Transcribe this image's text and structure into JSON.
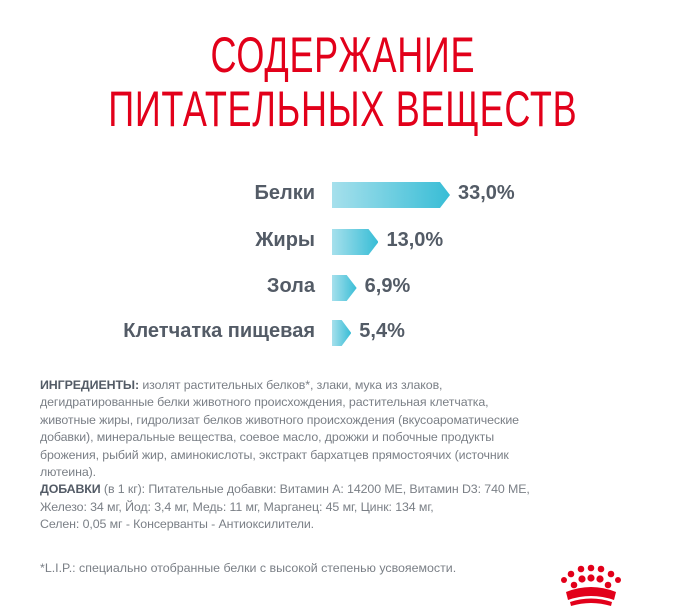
{
  "title": {
    "line1": "СОДЕРЖАНИЕ",
    "line2": "ПИТАТЕЛЬНЫХ ВЕЩЕСТВ"
  },
  "colors": {
    "brand": "#e2001a",
    "bar_start": "#a6e0ec",
    "bar_end": "#38bdd6",
    "text": "#535b66"
  },
  "chart_data": {
    "type": "bar",
    "categories": [
      "Белки",
      "Жиры",
      "Зола",
      "Клетчатка пищевая"
    ],
    "values": [
      33.0,
      13.0,
      6.9,
      5.4
    ],
    "value_labels": [
      "33,0%",
      "13,0%",
      "6,9%",
      "5,4%"
    ],
    "unit": "%"
  },
  "ingredients": {
    "heading": "ИНГРЕДИЕНТЫ:",
    "lines": [
      " изолят растительных белков*, злаки, мука из злаков,",
      "дегидратированные белки животного происхождения, растительная клетчатка,",
      "животные жиры, гидролизат белков животного происхождения (вкусоароматические",
      "добавки), минеральные вещества, соевое масло, дрожжи и побочные продукты",
      "брожения, рыбий жир, аминокислоты, экстракт бархатцев прямостоячих (источник",
      "лютеина)."
    ]
  },
  "additives": {
    "heading": "ДОБАВКИ",
    "lines": [
      " (в 1 кг): Питательные добавки: Витамин А: 14200 МЕ, Витамин D3: 740 МЕ,",
      "Железо: 34 мг, Йод: 3,4 мг, Медь: 11 мг, Марганец: 45 мг, Цинк: 134 мг,",
      "Селен: 0,05 мг - Консерванты - Антиоксилители."
    ]
  },
  "footnote": "*L.I.P.: специально отобранные белки с высокой степенью усвояемости."
}
